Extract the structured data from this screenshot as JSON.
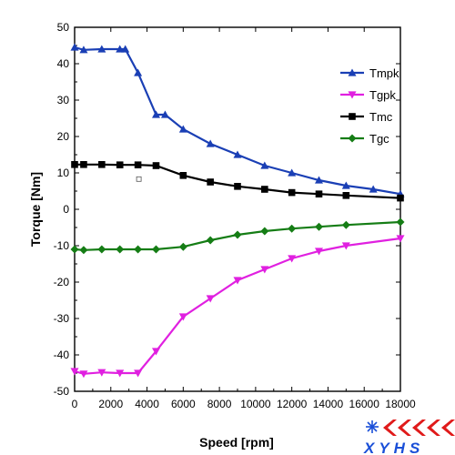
{
  "chart_data": {
    "type": "line",
    "xlabel": "Speed [rpm]",
    "ylabel": "Torque [Nm]",
    "xlim": [
      0,
      18000
    ],
    "ylim": [
      -50,
      50
    ],
    "xticks": [
      0,
      2000,
      4000,
      6000,
      8000,
      10000,
      12000,
      14000,
      16000,
      18000
    ],
    "yticks": [
      -50,
      -40,
      -30,
      -20,
      -10,
      0,
      10,
      20,
      30,
      40,
      50
    ],
    "grid": false,
    "legend_position": "right",
    "series": [
      {
        "name": "Tmpk",
        "color": "#1a3fb5",
        "marker": "triangle-up",
        "x": [
          0,
          500,
          1500,
          2500,
          2800,
          3500,
          4500,
          5000,
          6000,
          7500,
          9000,
          10500,
          12000,
          13500,
          15000,
          16500,
          18000
        ],
        "y": [
          44.5,
          43.8,
          44,
          44,
          44,
          37.5,
          26,
          26,
          22,
          18,
          15,
          12,
          10,
          8,
          6.5,
          5.5,
          4.2
        ]
      },
      {
        "name": "Tgpk",
        "color": "#e020e0",
        "marker": "triangle-down",
        "x": [
          0,
          500,
          1500,
          2500,
          3500,
          4500,
          6000,
          7500,
          9000,
          10500,
          12000,
          13500,
          15000,
          18000
        ],
        "y": [
          -44.5,
          -45.2,
          -44.8,
          -45,
          -45,
          -39,
          -29.5,
          -24.5,
          -19.5,
          -16.5,
          -13.5,
          -11.5,
          -10,
          -8
        ]
      },
      {
        "name": "Tmc",
        "color": "#000000",
        "marker": "square",
        "x": [
          0,
          500,
          1500,
          2500,
          3500,
          4500,
          6000,
          7500,
          9000,
          10500,
          12000,
          13500,
          15000,
          18000
        ],
        "y": [
          12.3,
          12.3,
          12.3,
          12.2,
          12.2,
          12,
          9.3,
          7.5,
          6.3,
          5.5,
          4.6,
          4.2,
          3.8,
          3.1
        ]
      },
      {
        "name": "Tgc",
        "color": "#157d15",
        "marker": "diamond",
        "x": [
          0,
          500,
          1500,
          2500,
          3500,
          4500,
          6000,
          7500,
          9000,
          10500,
          12000,
          13500,
          15000,
          18000
        ],
        "y": [
          -11,
          -11.2,
          -11,
          -11,
          -11,
          -11,
          -10.3,
          -8.5,
          -7,
          -6,
          -5.3,
          -4.8,
          -4.3,
          -3.5
        ]
      }
    ],
    "annotation_point": {
      "x": 3550,
      "y": 8.3
    }
  },
  "watermark": {
    "text": "XYHS",
    "colors": [
      "#1a4fd8",
      "#e01a1a"
    ]
  }
}
